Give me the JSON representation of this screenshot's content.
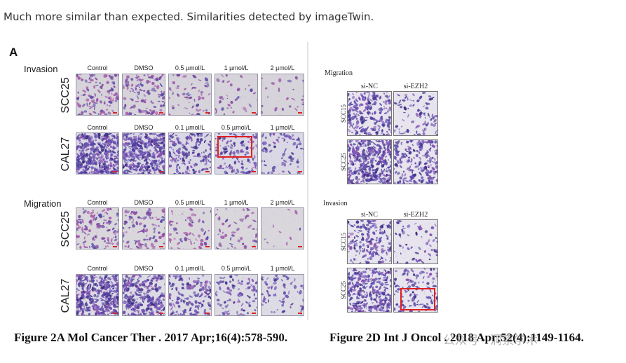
{
  "header_text": "Much more similar than expected. Similarities detected by imageTwin.",
  "panel_a": {
    "letter": "A",
    "invasion_label": "Invasion",
    "migration_label": "Migration",
    "row_scc25": "SCC25",
    "row_cal27": "CAL27",
    "cols_scc25": [
      "Control",
      "DMSO",
      "0.5 µmol/L",
      "1 µmol/L",
      "2 µmol/L"
    ],
    "cols_cal27": [
      "Control",
      "DMSO",
      "0.1 µmol/L",
      "0.5 µmol/L",
      "1 µmol/L"
    ]
  },
  "panel_d": {
    "migration_label": "Migration",
    "invasion_label": "Invasion",
    "col_nc": "si-NC",
    "col_ezh2": "si-EZH2",
    "row_scc15": "SCC15",
    "row_scc25": "SCC25"
  },
  "caption_left": "Figure 2A Mol Cancer Ther . 2017 Apr;16(4):578-590.",
  "caption_right": "Figure 2D Int J Oncol . 2018 Apr;52(4):1149-1164.",
  "watermark": "公众号 · 洞察学术",
  "colors": {
    "highlight": "#e02020",
    "stain": "#5a4aa8"
  }
}
